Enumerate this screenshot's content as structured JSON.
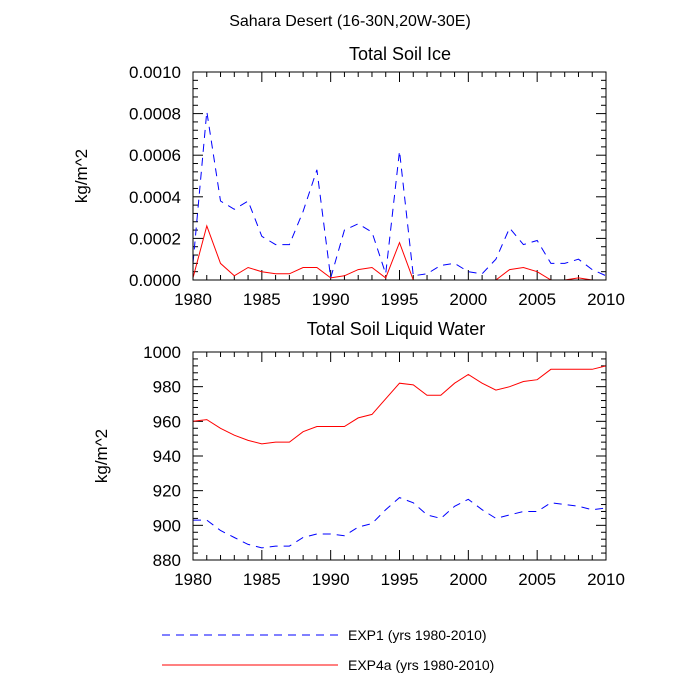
{
  "figure_title": "Sahara Desert (16-30N,20W-30E)",
  "chart_data": [
    {
      "type": "line",
      "title": "Total Soil Ice",
      "xlabel": "",
      "ylabel": "kg/m^2",
      "xlim": [
        1980,
        2010
      ],
      "ylim": [
        0,
        0.001
      ],
      "x_ticks": [
        1980,
        1985,
        1990,
        1995,
        2000,
        2005,
        2010
      ],
      "y_ticks": [
        0,
        0.0002,
        0.0004,
        0.0006,
        0.0008,
        0.001
      ],
      "y_tick_labels": [
        "0.0000",
        "0.0002",
        "0.0004",
        "0.0006",
        "0.0008",
        "0.0010"
      ],
      "x": [
        1980,
        1981,
        1982,
        1983,
        1984,
        1985,
        1986,
        1987,
        1988,
        1989,
        1990,
        1991,
        1992,
        1993,
        1994,
        1995,
        1996,
        1997,
        1998,
        1999,
        2000,
        2001,
        2002,
        2003,
        2004,
        2005,
        2006,
        2007,
        2008,
        2009,
        2010
      ],
      "series": [
        {
          "name": "EXP1",
          "color": "#0000ff",
          "dash": "dashed",
          "values": [
            8e-05,
            0.00081,
            0.00038,
            0.00034,
            0.00038,
            0.00021,
            0.00017,
            0.00017,
            0.00033,
            0.00053,
            1e-05,
            0.00024,
            0.00027,
            0.00023,
            3e-05,
            0.00062,
            2e-05,
            3e-05,
            7e-05,
            8e-05,
            4e-05,
            3e-05,
            0.0001,
            0.00025,
            0.00017,
            0.00019,
            8e-05,
            8e-05,
            0.0001,
            5e-05,
            2e-05
          ]
        },
        {
          "name": "EXP4a",
          "color": "#ff0000",
          "dash": "solid",
          "values": [
            1e-05,
            0.00026,
            8e-05,
            2e-05,
            6e-05,
            4e-05,
            3e-05,
            3e-05,
            6e-05,
            6e-05,
            1e-05,
            2e-05,
            5e-05,
            6e-05,
            1e-05,
            0.00018,
            0.0,
            0.0,
            0.0,
            0.0,
            0.0,
            0.0,
            0.0,
            5e-05,
            6e-05,
            4e-05,
            0.0,
            0.0,
            1e-05,
            0.0,
            0.0
          ]
        }
      ]
    },
    {
      "type": "line",
      "title": "Total Soil Liquid Water",
      "xlabel": "",
      "ylabel": "kg/m^2",
      "xlim": [
        1980,
        2010
      ],
      "ylim": [
        880,
        1000
      ],
      "x_ticks": [
        1980,
        1985,
        1990,
        1995,
        2000,
        2005,
        2010
      ],
      "y_ticks": [
        880,
        900,
        920,
        940,
        960,
        980,
        1000
      ],
      "y_tick_labels": [
        "880",
        "900",
        "920",
        "940",
        "960",
        "980",
        "1000"
      ],
      "x": [
        1980,
        1981,
        1982,
        1983,
        1984,
        1985,
        1986,
        1987,
        1988,
        1989,
        1990,
        1991,
        1992,
        1993,
        1994,
        1995,
        1996,
        1997,
        1998,
        1999,
        2000,
        2001,
        2002,
        2003,
        2004,
        2005,
        2006,
        2007,
        2008,
        2009,
        2010
      ],
      "series": [
        {
          "name": "EXP1",
          "color": "#0000ff",
          "dash": "dashed",
          "values": [
            903,
            903,
            897,
            893,
            889,
            887,
            888,
            888,
            893,
            895,
            895,
            894,
            899,
            901,
            909,
            916,
            913,
            906,
            904,
            911,
            915,
            909,
            904,
            906,
            908,
            908,
            913,
            912,
            911,
            909,
            910
          ]
        },
        {
          "name": "EXP4a",
          "color": "#ff0000",
          "dash": "solid",
          "values": [
            960,
            961,
            956,
            952,
            949,
            947,
            948,
            948,
            954,
            957,
            957,
            957,
            962,
            964,
            973,
            982,
            981,
            975,
            975,
            982,
            987,
            982,
            978,
            980,
            983,
            984,
            990,
            990,
            990,
            990,
            992
          ]
        }
      ]
    }
  ],
  "legend": {
    "placement": "bottom",
    "entries": [
      {
        "label": "EXP1 (yrs 1980-2010)",
        "color": "#0000ff",
        "dash": "dashed"
      },
      {
        "label": "EXP4a (yrs 1980-2010)",
        "color": "#ff0000",
        "dash": "solid"
      }
    ]
  }
}
